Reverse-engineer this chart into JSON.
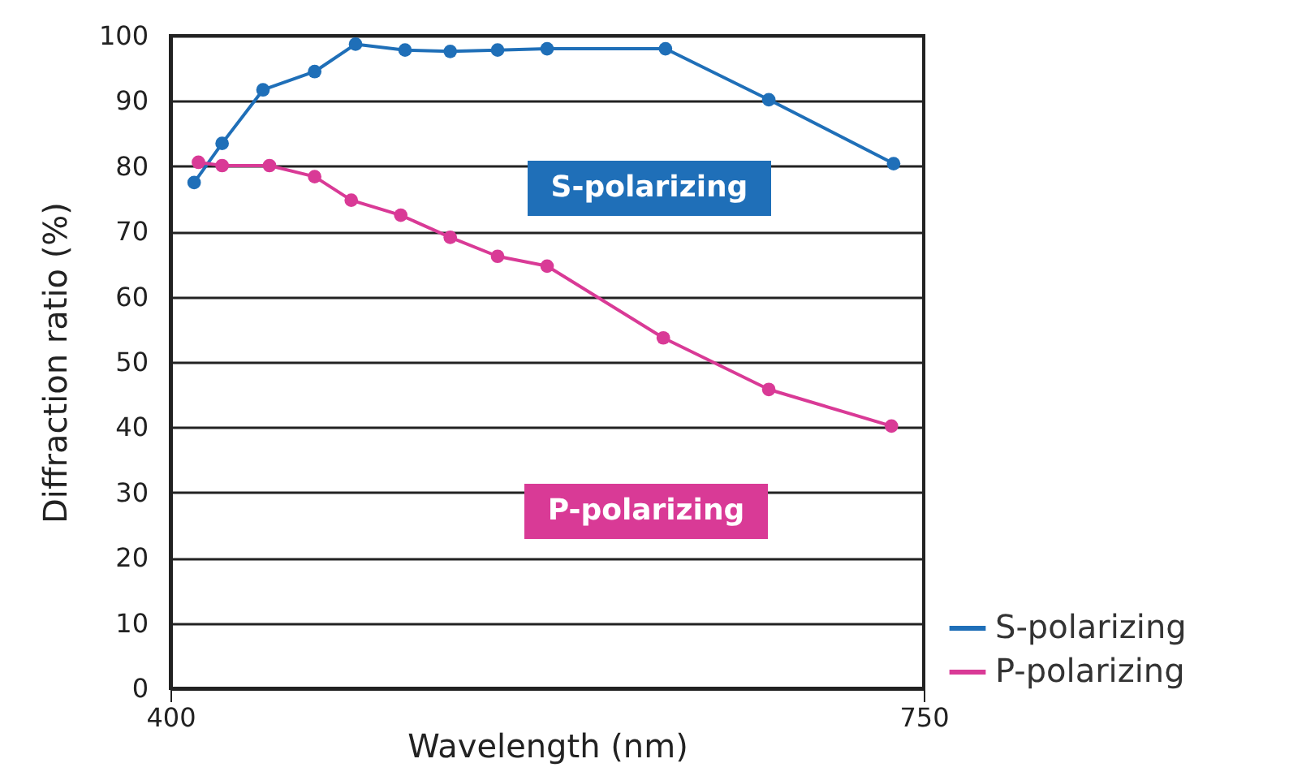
{
  "chart_data": {
    "type": "line",
    "xlabel": "Wavelength (nm)",
    "ylabel": "Diffraction ratio (%)",
    "xlim": [
      400,
      750
    ],
    "xticks": [
      400,
      750
    ],
    "ylim": [
      0,
      100
    ],
    "yticks": [
      0,
      10,
      20,
      30,
      40,
      50,
      60,
      70,
      80,
      90,
      100
    ],
    "grid": "y",
    "legend": "bottom right",
    "marker": "circle",
    "series": [
      {
        "name": "S-polarizing",
        "color": "#1f6fb8",
        "x": [
          411,
          424,
          443,
          467,
          486,
          509,
          530,
          552,
          575,
          630,
          678,
          736
        ],
        "values": [
          77.5,
          83.5,
          91.7,
          94.5,
          98.7,
          97.8,
          97.6,
          97.8,
          98.0,
          98.0,
          90.2,
          80.4
        ]
      },
      {
        "name": "P-polarizing",
        "color": "#d93a96",
        "x": [
          413,
          424,
          446,
          467,
          484,
          507,
          530,
          552,
          575,
          629,
          678,
          735
        ],
        "values": [
          80.6,
          80.1,
          80.1,
          78.4,
          74.8,
          72.5,
          69.1,
          66.2,
          64.7,
          53.7,
          45.8,
          40.2
        ]
      }
    ],
    "annotations": [
      "S-polarizing",
      "P-polarizing"
    ]
  }
}
